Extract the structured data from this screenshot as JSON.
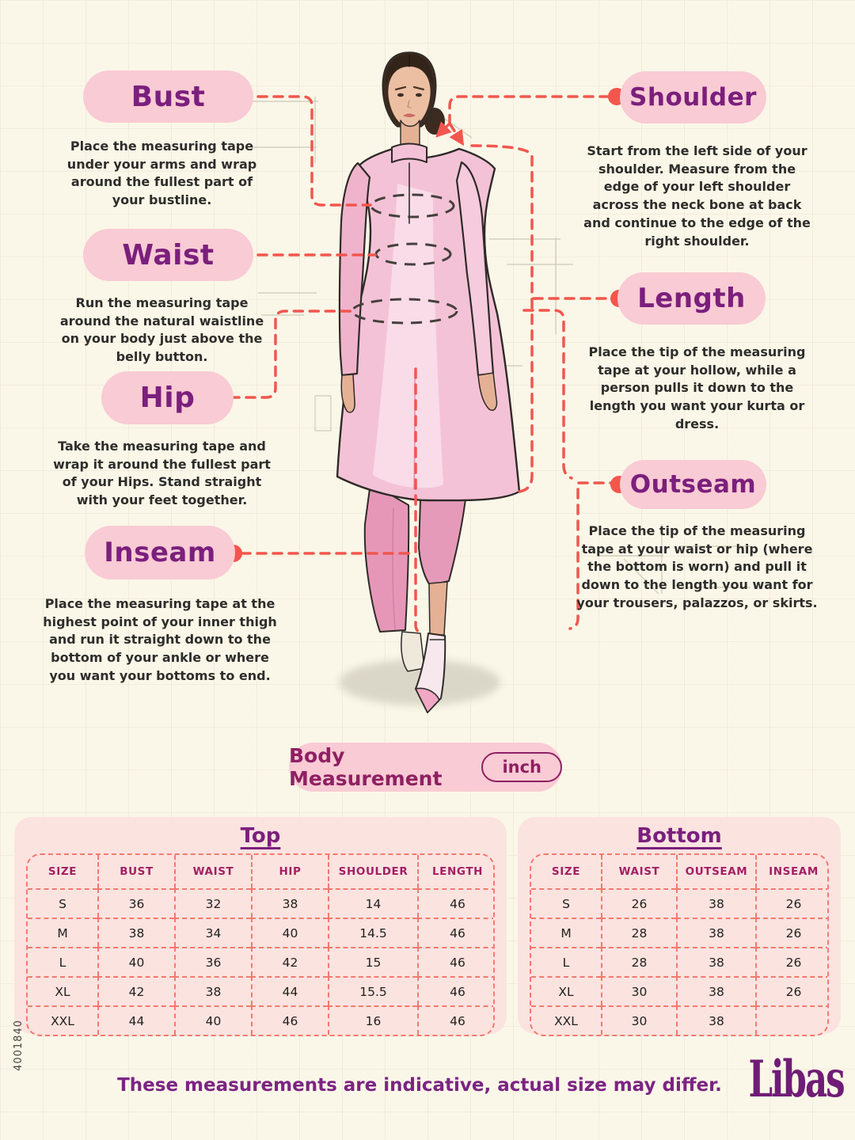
{
  "page": {
    "code": "4001840",
    "footer": "These measurements are indicative, actual size may differ.",
    "brand": "Libas"
  },
  "colors": {
    "pink": "#F9CBD4",
    "purple": "#7B1F7D",
    "magenta": "#A21F63",
    "coral": "#F2564D",
    "dash": "#F27A6E",
    "card": "#FBE3E0",
    "cream": "#FAF7E8"
  },
  "measure_labels": [
    {
      "id": "bust",
      "label": "Bust",
      "desc": "Place the measuring tape under your arms and wrap around the fullest part of your bustline."
    },
    {
      "id": "waist",
      "label": "Waist",
      "desc": "Run the measuring tape around the natural waistline on your body just above the belly button."
    },
    {
      "id": "hip",
      "label": "Hip",
      "desc": "Take the measuring tape and wrap it around the fullest part of your Hips. Stand straight with your feet together."
    },
    {
      "id": "inseam",
      "label": "Inseam",
      "desc": "Place the measuring tape at the highest point of your inner thigh and run it straight down to the bottom of your ankle or where you want your bottoms to end."
    },
    {
      "id": "shoulder",
      "label": "Shoulder",
      "desc": "Start from the left side of your shoulder. Measure from the edge of your left shoulder across the neck bone at back and continue to the edge of the right shoulder."
    },
    {
      "id": "length",
      "label": "Length",
      "desc": "Place the tip of the measuring tape at your hollow, while a person pulls it down to the length you want your kurta or dress."
    },
    {
      "id": "outseam",
      "label": "Outseam",
      "desc": "Place the tip of the measuring tape at your waist or hip (where the bottom is worn) and pull it down to the length you want for your trousers, palazzos, or skirts."
    }
  ],
  "measurement_bar": {
    "label": "Body Measurement",
    "unit": "inch"
  },
  "tables": {
    "top": {
      "title": "Top",
      "headers": [
        "SIZE",
        "BUST",
        "WAIST",
        "HIP",
        "SHOULDER",
        "LENGTH"
      ],
      "rows": [
        [
          "S",
          "36",
          "32",
          "38",
          "14",
          "46"
        ],
        [
          "M",
          "38",
          "34",
          "40",
          "14.5",
          "46"
        ],
        [
          "L",
          "40",
          "36",
          "42",
          "15",
          "46"
        ],
        [
          "XL",
          "42",
          "38",
          "44",
          "15.5",
          "46"
        ],
        [
          "XXL",
          "44",
          "40",
          "46",
          "16",
          "46"
        ]
      ]
    },
    "bottom": {
      "title": "Bottom",
      "headers": [
        "SIZE",
        "WAIST",
        "OUTSEAM",
        "INSEAM"
      ],
      "rows": [
        [
          "S",
          "26",
          "38",
          "26"
        ],
        [
          "M",
          "28",
          "38",
          "26"
        ],
        [
          "L",
          "28",
          "38",
          "26"
        ],
        [
          "XL",
          "30",
          "38",
          "26"
        ],
        [
          "XXL",
          "30",
          "38",
          ""
        ]
      ]
    }
  }
}
